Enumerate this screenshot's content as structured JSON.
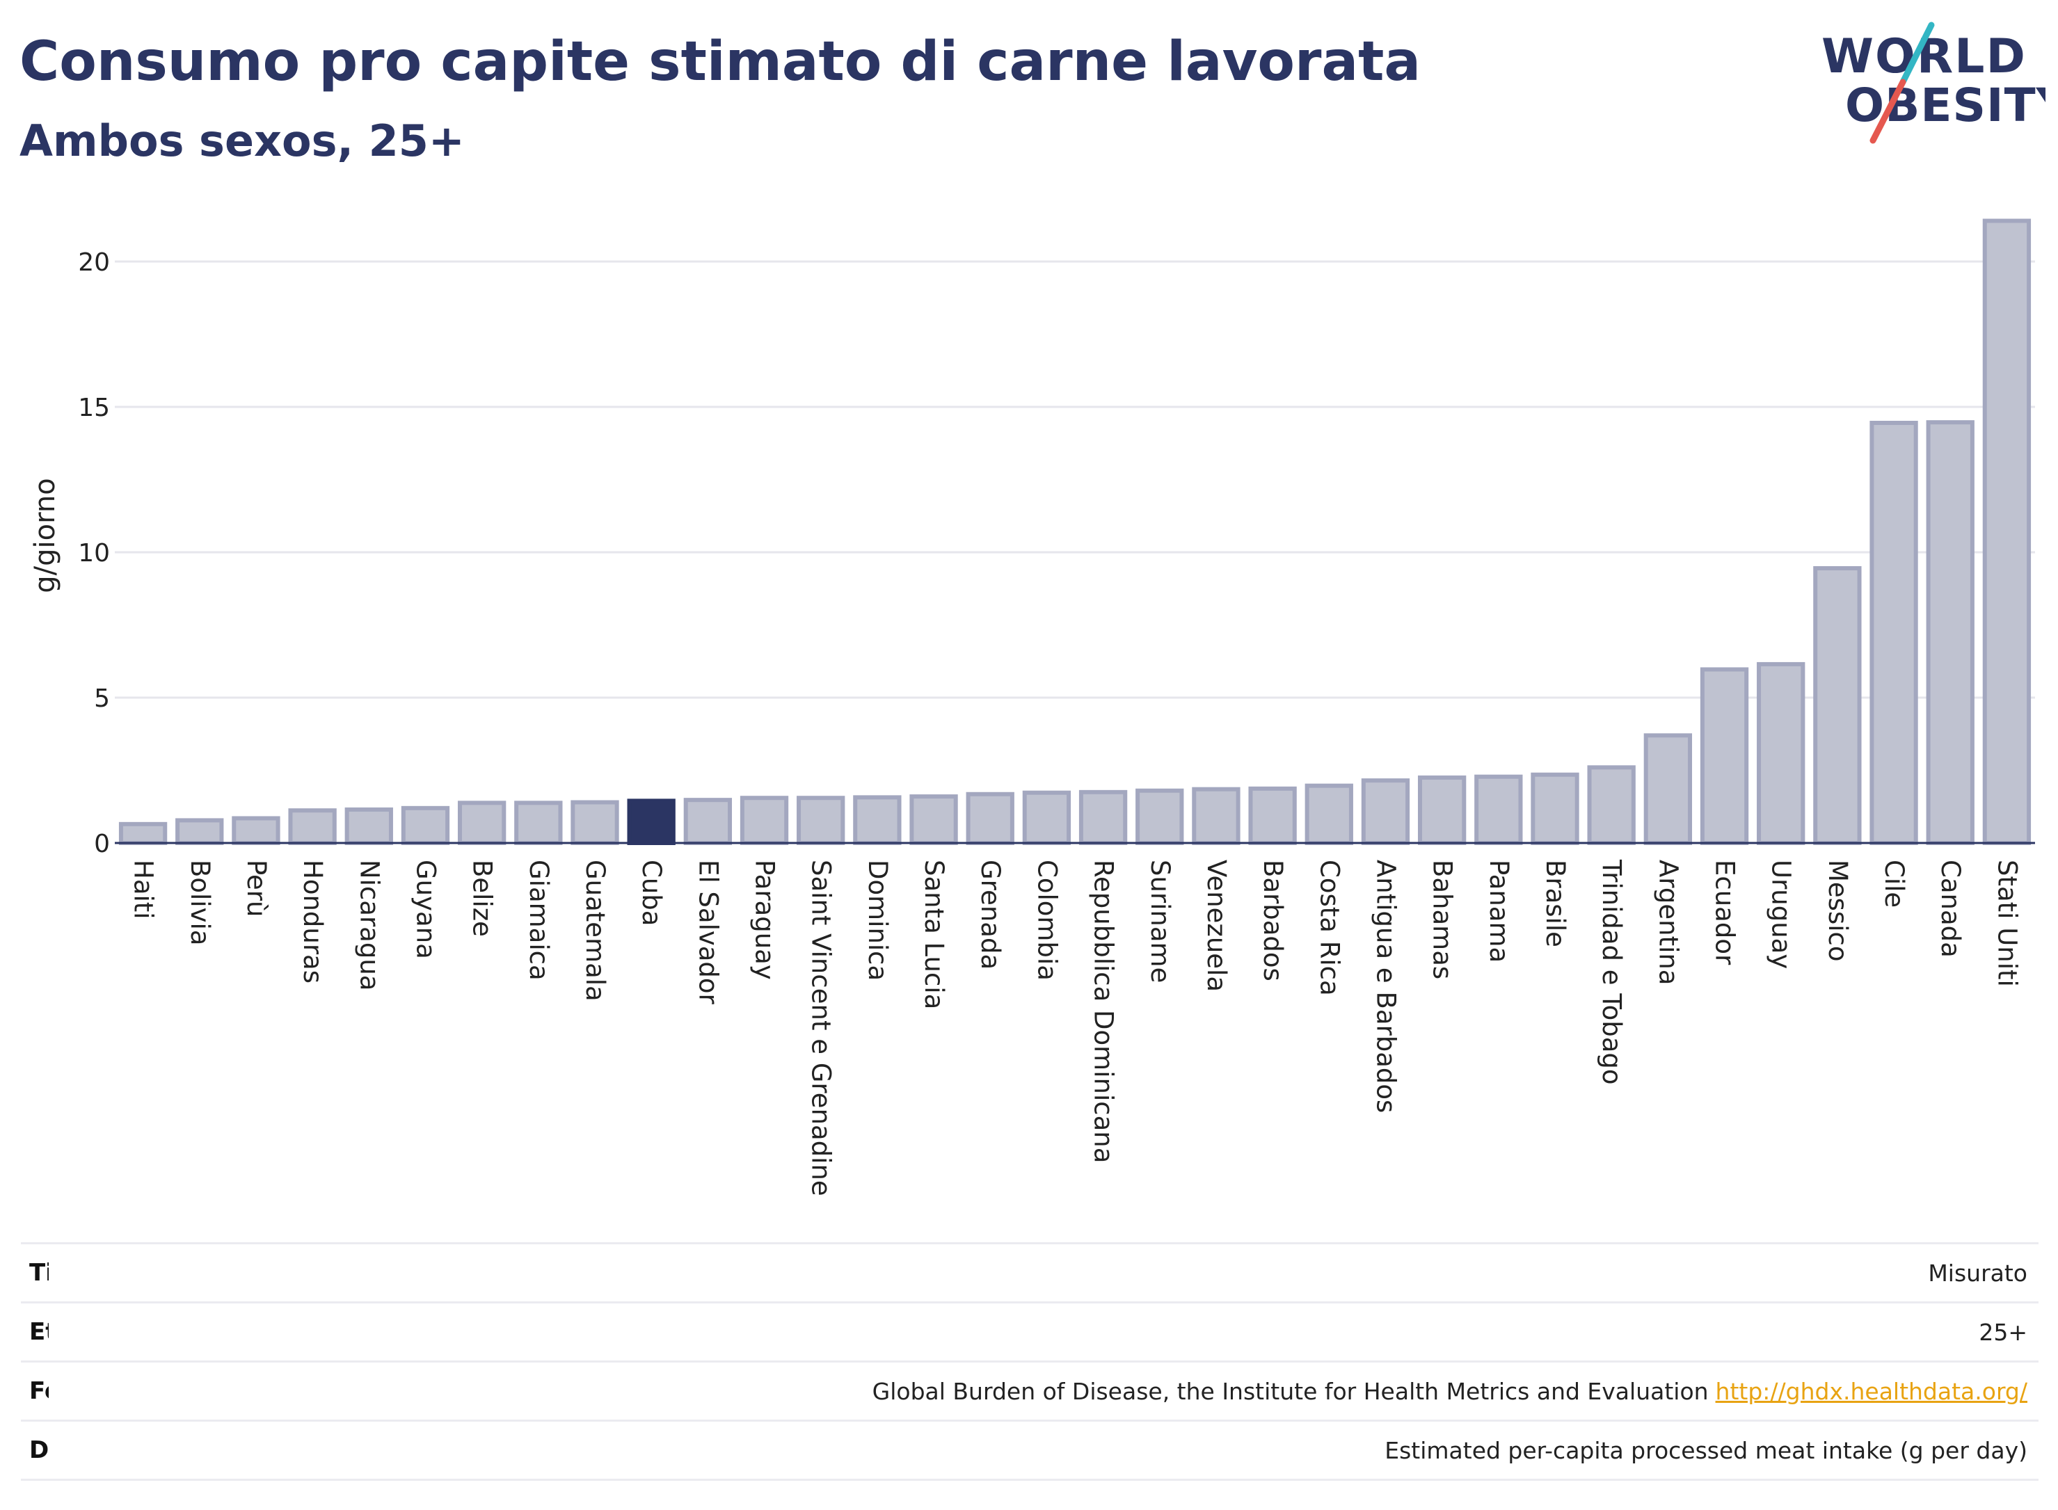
{
  "header": {
    "title": "Consumo pro capite stimato di carne lavorata",
    "subtitle": "Ambos sexos, 25+"
  },
  "logo": {
    "line1": "WORLD",
    "line2": "OBESITY",
    "accent": "#e5584f",
    "accent2": "#33b6c4",
    "color": "#2b3563"
  },
  "colors": {
    "bar": "#bfc2d0",
    "bar_stroke": "#a3a7bf",
    "highlight": "#2b3563",
    "grid": "#e6e6ec",
    "axis": "#2b3563"
  },
  "chart_data": {
    "type": "bar",
    "ylabel": "g/giorno",
    "ylim": [
      0,
      22
    ],
    "yticks": [
      0,
      5,
      10,
      15,
      20
    ],
    "highlight": "Cuba",
    "categories": [
      "Haiti",
      "Bolivia",
      "Perù",
      "Honduras",
      "Nicaragua",
      "Guyana",
      "Belize",
      "Giamaica",
      "Guatemala",
      "Cuba",
      "El Salvador",
      "Paraguay",
      "Saint Vincent e Grenadine",
      "Dominica",
      "Santa Lucia",
      "Grenada",
      "Colombia",
      "Repubblica Dominicana",
      "Suriname",
      "Venezuela",
      "Barbados",
      "Costa Rica",
      "Antigua e Barbados",
      "Bahamas",
      "Panama",
      "Brasile",
      "Trinidad e Tobago",
      "Argentina",
      "Ecuador",
      "Uruguay",
      "Messico",
      "Cile",
      "Canada",
      "Stati Uniti"
    ],
    "values": [
      0.65,
      0.78,
      0.85,
      1.12,
      1.15,
      1.2,
      1.38,
      1.38,
      1.4,
      1.45,
      1.48,
      1.55,
      1.55,
      1.57,
      1.6,
      1.68,
      1.73,
      1.75,
      1.8,
      1.85,
      1.87,
      1.97,
      2.15,
      2.25,
      2.28,
      2.35,
      2.6,
      3.7,
      5.97,
      6.15,
      9.45,
      14.45,
      14.47,
      21.4
    ]
  },
  "info": [
    {
      "key": "Tipo",
      "value": "Misurato"
    },
    {
      "key": "Età",
      "value": "25+"
    },
    {
      "key": "Fonte",
      "value": "Global Burden of Disease, the Institute for Health Metrics and Evaluation",
      "link": "http://ghdx.healthdata.org/"
    },
    {
      "key": "Definizione",
      "value": "Estimated per-capita processed meat intake (g per day)"
    }
  ]
}
